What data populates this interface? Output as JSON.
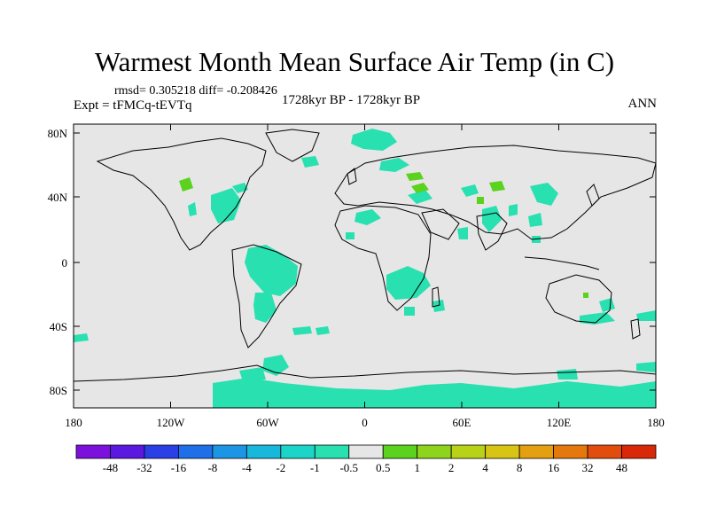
{
  "title": "Warmest Month Mean Surface Air Temp (in C)",
  "stats_line": "rmsd= 0.305218 diff= -0.208426",
  "experiment": "Expt = tFMCq-tEVTq",
  "period": "1728kyr BP - 1728kyr BP",
  "season": "ANN",
  "y_ticks": [
    "80N",
    "40N",
    "0",
    "40S",
    "80S"
  ],
  "x_ticks": [
    "180",
    "120W",
    "60W",
    "0",
    "60E",
    "120E",
    "180"
  ],
  "colorbar": {
    "labels": [
      "-48",
      "-32",
      "-16",
      "-8",
      "-4",
      "-2",
      "-1",
      "-0.5",
      "0.5",
      "1",
      "2",
      "4",
      "8",
      "16",
      "32",
      "48"
    ],
    "colors": [
      "#7c10dc",
      "#5a18e0",
      "#2a3fe6",
      "#1e6fe8",
      "#1c95e4",
      "#18b8dc",
      "#1cd4c8",
      "#28e0b0",
      "#e6e6e6",
      "#5ad21e",
      "#8ed41c",
      "#b8d218",
      "#d8c414",
      "#e4a010",
      "#e4780c",
      "#e24c0c",
      "#d82808"
    ]
  },
  "colors": {
    "ocean_background": "#e6e6e6",
    "cooling": "#28e0b0",
    "warming": "#5ad21e",
    "frame": "#000000"
  }
}
